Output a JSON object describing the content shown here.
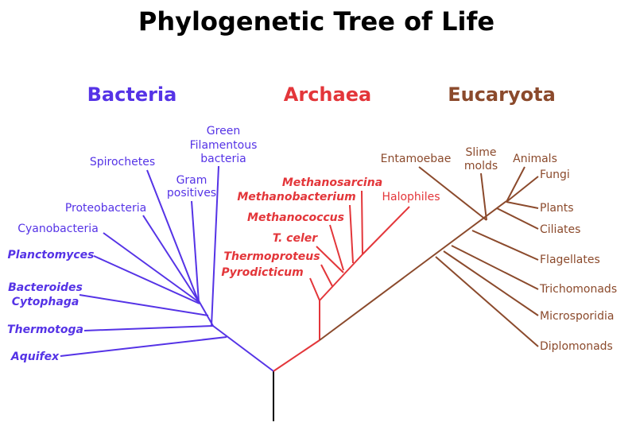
{
  "title": "Phylogenetic Tree of Life",
  "domains": [
    {
      "name": "Bacteria",
      "leaves": [
        {
          "lines": [
            "Green",
            "Filamentous",
            "bacteria"
          ]
        },
        {
          "lines": [
            "Gram",
            "positives"
          ]
        },
        "Spirochetes",
        "Proteobacteria",
        "Cyanobacteria",
        "Planctomyces",
        {
          "lines": [
            "Bacteroides",
            "Cytophaga"
          ]
        },
        "Thermotoga",
        "Aquifex"
      ]
    },
    {
      "name": "Archaea",
      "leaves": [
        "Methanosarcina",
        "Methanobacterium",
        "Halophiles",
        "Methanococcus",
        "T. celer",
        "Thermoproteus",
        "Pyrodicticum"
      ]
    },
    {
      "name": "Eucaryota",
      "leaves": [
        "Entamoebae",
        {
          "lines": [
            "Slime",
            "molds"
          ]
        },
        "Animals",
        "Fungi",
        "Plants",
        "Ciliates",
        "Flagellates",
        "Trichomonads",
        "Microsporidia",
        "Diplomonads"
      ]
    }
  ]
}
